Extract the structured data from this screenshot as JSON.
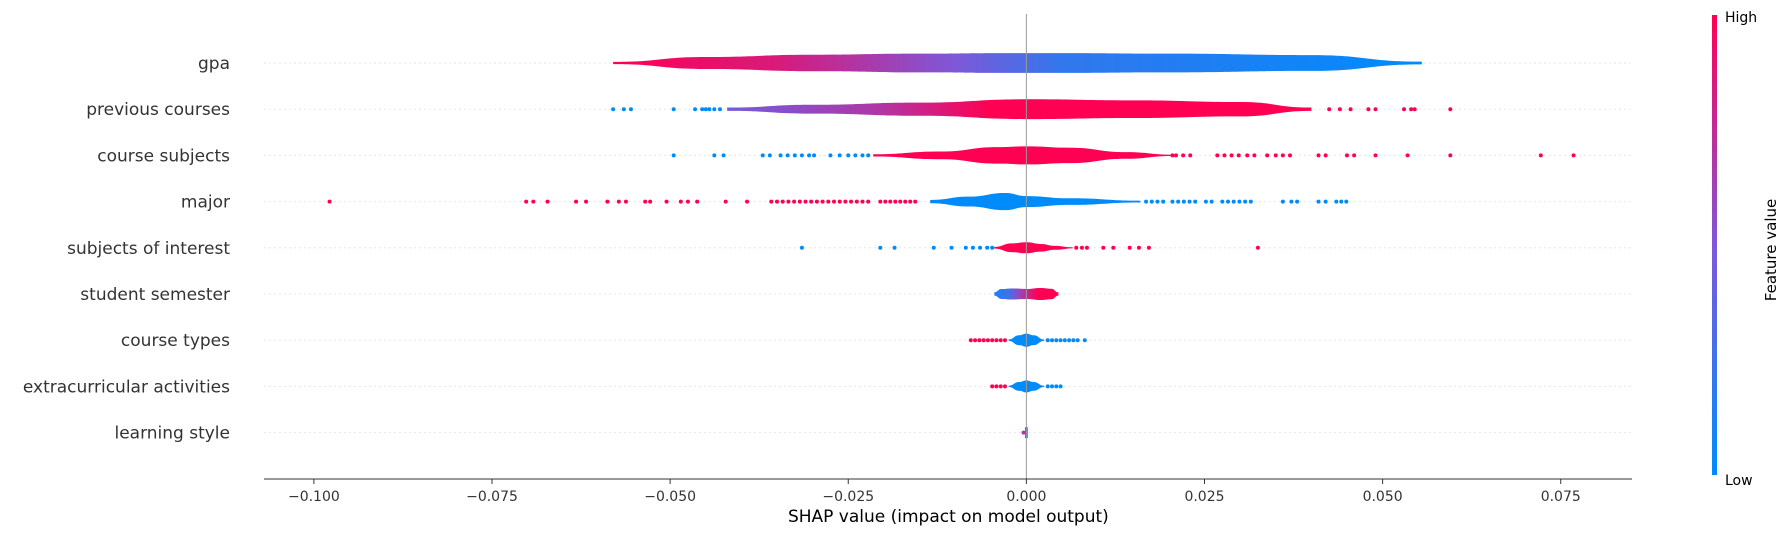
{
  "chart_data": {
    "type": "violin",
    "xlabel": "SHAP value (impact on model output)",
    "xlim": [
      -0.107,
      0.085
    ],
    "xticks": [
      -0.1,
      -0.075,
      -0.05,
      -0.025,
      0.0,
      0.025,
      0.05,
      0.075
    ],
    "xtick_labels": [
      "−0.100",
      "−0.075",
      "−0.050",
      "−0.025",
      "0.000",
      "0.025",
      "0.050",
      "0.075"
    ],
    "grid": "dotted horizontal per feature",
    "features": [
      {
        "name": "gpa",
        "min": -0.058,
        "max": 0.0555,
        "width_profile": [
          [
            -0.058,
            0.1
          ],
          [
            -0.045,
            0.55
          ],
          [
            -0.03,
            0.75
          ],
          [
            -0.015,
            0.85
          ],
          [
            -0.003,
            0.9
          ],
          [
            0.005,
            0.9
          ],
          [
            0.02,
            0.85
          ],
          [
            0.04,
            0.72
          ],
          [
            0.0555,
            0.12
          ]
        ],
        "color_stops": [
          [
            -0.058,
            1.0
          ],
          [
            -0.035,
            0.85
          ],
          [
            -0.01,
            0.5
          ],
          [
            0.005,
            0.2
          ],
          [
            0.0555,
            0.0
          ]
        ],
        "outliers": []
      },
      {
        "name": "previous courses",
        "min": -0.042,
        "max": 0.04,
        "width_profile": [
          [
            -0.042,
            0.15
          ],
          [
            -0.03,
            0.4
          ],
          [
            -0.015,
            0.6
          ],
          [
            0.0,
            0.9
          ],
          [
            0.015,
            0.8
          ],
          [
            0.03,
            0.65
          ],
          [
            0.04,
            0.15
          ]
        ],
        "color_stops": [
          [
            -0.042,
            0.45
          ],
          [
            -0.02,
            0.7
          ],
          [
            -0.005,
            1.0
          ],
          [
            0.04,
            1.0
          ]
        ],
        "outliers": [
          {
            "x": -0.058,
            "v": 0.0
          },
          {
            "x": -0.0565,
            "v": 0.0
          },
          {
            "x": -0.0555,
            "v": 0.0
          },
          {
            "x": -0.0495,
            "v": 0.0
          },
          {
            "x": -0.0465,
            "v": 0.0
          },
          {
            "x": -0.0455,
            "v": 0.0
          },
          {
            "x": -0.045,
            "v": 0.0
          },
          {
            "x": -0.0445,
            "v": 0.0
          },
          {
            "x": -0.0438,
            "v": 0.0
          },
          {
            "x": -0.043,
            "v": 0.0
          },
          {
            "x": 0.0425,
            "v": 1.0
          },
          {
            "x": 0.044,
            "v": 1.0
          },
          {
            "x": 0.0455,
            "v": 1.0
          },
          {
            "x": 0.048,
            "v": 1.0
          },
          {
            "x": 0.049,
            "v": 1.0
          },
          {
            "x": 0.053,
            "v": 1.0
          },
          {
            "x": 0.054,
            "v": 1.0
          },
          {
            "x": 0.0545,
            "v": 1.0
          },
          {
            "x": 0.0595,
            "v": 1.0
          }
        ]
      },
      {
        "name": "course subjects",
        "min": -0.0215,
        "max": 0.0205,
        "width_profile": [
          [
            -0.0215,
            0.1
          ],
          [
            -0.012,
            0.35
          ],
          [
            -0.004,
            0.75
          ],
          [
            0.0,
            0.82
          ],
          [
            0.006,
            0.7
          ],
          [
            0.014,
            0.3
          ],
          [
            0.0205,
            0.06
          ]
        ],
        "color_stops": [
          [
            -0.0215,
            1.0
          ],
          [
            0.0205,
            1.0
          ]
        ],
        "outliers": [
          {
            "x": -0.0495,
            "v": 0.0
          },
          {
            "x": -0.0438,
            "v": 0.0
          },
          {
            "x": -0.0425,
            "v": 0.0
          },
          {
            "x": -0.037,
            "v": 0.0
          },
          {
            "x": -0.036,
            "v": 0.0
          },
          {
            "x": -0.0345,
            "v": 0.0
          },
          {
            "x": -0.0335,
            "v": 0.0
          },
          {
            "x": -0.0325,
            "v": 0.0
          },
          {
            "x": -0.0315,
            "v": 0.0
          },
          {
            "x": -0.0305,
            "v": 0.0
          },
          {
            "x": -0.0298,
            "v": 0.0
          },
          {
            "x": -0.0275,
            "v": 0.0
          },
          {
            "x": -0.0262,
            "v": 0.0
          },
          {
            "x": -0.025,
            "v": 0.0
          },
          {
            "x": -0.024,
            "v": 0.0
          },
          {
            "x": -0.023,
            "v": 0.0
          },
          {
            "x": -0.0222,
            "v": 0.0
          },
          {
            "x": 0.0205,
            "v": 1.0
          },
          {
            "x": 0.021,
            "v": 1.0
          },
          {
            "x": 0.022,
            "v": 1.0
          },
          {
            "x": 0.023,
            "v": 1.0
          },
          {
            "x": 0.0268,
            "v": 1.0
          },
          {
            "x": 0.0278,
            "v": 1.0
          },
          {
            "x": 0.0288,
            "v": 1.0
          },
          {
            "x": 0.0298,
            "v": 1.0
          },
          {
            "x": 0.031,
            "v": 1.0
          },
          {
            "x": 0.032,
            "v": 1.0
          },
          {
            "x": 0.0338,
            "v": 1.0
          },
          {
            "x": 0.035,
            "v": 1.0
          },
          {
            "x": 0.036,
            "v": 1.0
          },
          {
            "x": 0.037,
            "v": 1.0
          },
          {
            "x": 0.041,
            "v": 1.0
          },
          {
            "x": 0.042,
            "v": 1.0
          },
          {
            "x": 0.045,
            "v": 1.0
          },
          {
            "x": 0.046,
            "v": 1.0
          },
          {
            "x": 0.049,
            "v": 1.0
          },
          {
            "x": 0.0535,
            "v": 1.0
          },
          {
            "x": 0.0595,
            "v": 1.0
          },
          {
            "x": 0.0722,
            "v": 1.0
          },
          {
            "x": 0.0768,
            "v": 1.0
          }
        ]
      },
      {
        "name": "major",
        "min": -0.0135,
        "max": 0.016,
        "width_profile": [
          [
            -0.0135,
            0.15
          ],
          [
            -0.008,
            0.45
          ],
          [
            -0.003,
            0.78
          ],
          [
            0.0,
            0.5
          ],
          [
            0.006,
            0.3
          ],
          [
            0.016,
            0.08
          ]
        ],
        "color_stops": [
          [
            -0.0135,
            0.0
          ],
          [
            0.016,
            0.0
          ]
        ],
        "outliers": [
          {
            "x": -0.0978,
            "v": 1.0
          },
          {
            "x": -0.0702,
            "v": 1.0
          },
          {
            "x": -0.0692,
            "v": 1.0
          },
          {
            "x": -0.0672,
            "v": 1.0
          },
          {
            "x": -0.0632,
            "v": 1.0
          },
          {
            "x": -0.0618,
            "v": 1.0
          },
          {
            "x": -0.0588,
            "v": 1.0
          },
          {
            "x": -0.0572,
            "v": 1.0
          },
          {
            "x": -0.0562,
            "v": 1.0
          },
          {
            "x": -0.0535,
            "v": 1.0
          },
          {
            "x": -0.0528,
            "v": 1.0
          },
          {
            "x": -0.0505,
            "v": 1.0
          },
          {
            "x": -0.0485,
            "v": 1.0
          },
          {
            "x": -0.0475,
            "v": 1.0
          },
          {
            "x": -0.0462,
            "v": 1.0
          },
          {
            "x": -0.0422,
            "v": 1.0
          },
          {
            "x": -0.0392,
            "v": 1.0
          },
          {
            "x": -0.0358,
            "v": 1.0
          },
          {
            "x": -0.035,
            "v": 1.0
          },
          {
            "x": -0.0342,
            "v": 1.0
          },
          {
            "x": -0.0334,
            "v": 1.0
          },
          {
            "x": -0.0326,
            "v": 1.0
          },
          {
            "x": -0.0318,
            "v": 1.0
          },
          {
            "x": -0.031,
            "v": 1.0
          },
          {
            "x": -0.0302,
            "v": 1.0
          },
          {
            "x": -0.0294,
            "v": 1.0
          },
          {
            "x": -0.0286,
            "v": 1.0
          },
          {
            "x": -0.0278,
            "v": 1.0
          },
          {
            "x": -0.027,
            "v": 1.0
          },
          {
            "x": -0.0262,
            "v": 1.0
          },
          {
            "x": -0.0254,
            "v": 1.0
          },
          {
            "x": -0.0246,
            "v": 1.0
          },
          {
            "x": -0.0238,
            "v": 1.0
          },
          {
            "x": -0.023,
            "v": 1.0
          },
          {
            "x": -0.0222,
            "v": 1.0
          },
          {
            "x": -0.0205,
            "v": 1.0
          },
          {
            "x": -0.0198,
            "v": 1.0
          },
          {
            "x": -0.0191,
            "v": 1.0
          },
          {
            "x": -0.0184,
            "v": 1.0
          },
          {
            "x": -0.0177,
            "v": 1.0
          },
          {
            "x": -0.017,
            "v": 1.0
          },
          {
            "x": -0.0163,
            "v": 1.0
          },
          {
            "x": -0.0156,
            "v": 1.0
          },
          {
            "x": 0.0168,
            "v": 0.0
          },
          {
            "x": 0.0176,
            "v": 0.0
          },
          {
            "x": 0.0184,
            "v": 0.0
          },
          {
            "x": 0.0192,
            "v": 0.0
          },
          {
            "x": 0.0205,
            "v": 0.0
          },
          {
            "x": 0.0213,
            "v": 0.0
          },
          {
            "x": 0.0221,
            "v": 0.0
          },
          {
            "x": 0.0229,
            "v": 0.0
          },
          {
            "x": 0.0237,
            "v": 0.0
          },
          {
            "x": 0.0252,
            "v": 0.0
          },
          {
            "x": 0.026,
            "v": 0.0
          },
          {
            "x": 0.0275,
            "v": 0.0
          },
          {
            "x": 0.0283,
            "v": 0.0
          },
          {
            "x": 0.0291,
            "v": 0.0
          },
          {
            "x": 0.0299,
            "v": 0.0
          },
          {
            "x": 0.0307,
            "v": 0.0
          },
          {
            "x": 0.0315,
            "v": 0.0
          },
          {
            "x": 0.036,
            "v": 0.0
          },
          {
            "x": 0.0372,
            "v": 0.0
          },
          {
            "x": 0.038,
            "v": 0.0
          },
          {
            "x": 0.041,
            "v": 0.0
          },
          {
            "x": 0.042,
            "v": 0.0
          },
          {
            "x": 0.0435,
            "v": 0.0
          },
          {
            "x": 0.0442,
            "v": 0.0
          },
          {
            "x": 0.0449,
            "v": 0.0
          }
        ]
      },
      {
        "name": "subjects of interest",
        "min": -0.0045,
        "max": 0.0065,
        "width_profile": [
          [
            -0.0045,
            0.08
          ],
          [
            -0.002,
            0.4
          ],
          [
            0.0,
            0.5
          ],
          [
            0.002,
            0.35
          ],
          [
            0.004,
            0.18
          ],
          [
            0.0065,
            0.05
          ]
        ],
        "color_stops": [
          [
            -0.0045,
            1.0
          ],
          [
            0.0065,
            1.0
          ]
        ],
        "outliers": [
          {
            "x": -0.0315,
            "v": 0.0
          },
          {
            "x": -0.0205,
            "v": 0.0
          },
          {
            "x": -0.0185,
            "v": 0.0
          },
          {
            "x": -0.013,
            "v": 0.0
          },
          {
            "x": -0.0105,
            "v": 0.0
          },
          {
            "x": -0.0085,
            "v": 0.0
          },
          {
            "x": -0.0075,
            "v": 0.0
          },
          {
            "x": -0.0065,
            "v": 0.0
          },
          {
            "x": -0.0055,
            "v": 0.0
          },
          {
            "x": -0.0048,
            "v": 0.0
          },
          {
            "x": 0.007,
            "v": 1.0
          },
          {
            "x": 0.0078,
            "v": 1.0
          },
          {
            "x": 0.0085,
            "v": 1.0
          },
          {
            "x": 0.0108,
            "v": 1.0
          },
          {
            "x": 0.0122,
            "v": 1.0
          },
          {
            "x": 0.0145,
            "v": 1.0
          },
          {
            "x": 0.0158,
            "v": 1.0
          },
          {
            "x": 0.0172,
            "v": 1.0
          },
          {
            "x": 0.0325,
            "v": 1.0
          }
        ]
      },
      {
        "name": "student semester",
        "min": -0.0045,
        "max": 0.0045,
        "width_profile": [
          [
            -0.0045,
            0.15
          ],
          [
            -0.0035,
            0.45
          ],
          [
            -0.002,
            0.5
          ],
          [
            0.0,
            0.46
          ],
          [
            0.002,
            0.55
          ],
          [
            0.0035,
            0.48
          ],
          [
            0.0045,
            0.15
          ]
        ],
        "color_stops": [
          [
            -0.0045,
            0.1
          ],
          [
            -0.0025,
            0.25
          ],
          [
            -0.001,
            0.6
          ],
          [
            0.0015,
            1.0
          ],
          [
            0.0045,
            1.0
          ]
        ],
        "outliers": []
      },
      {
        "name": "course types",
        "min": -0.0025,
        "max": 0.0025,
        "width_profile": [
          [
            -0.0025,
            0.06
          ],
          [
            -0.001,
            0.45
          ],
          [
            0.0,
            0.6
          ],
          [
            0.001,
            0.45
          ],
          [
            0.0025,
            0.06
          ]
        ],
        "color_stops": [
          [
            -0.0025,
            0.0
          ],
          [
            0.0025,
            0.0
          ]
        ],
        "outliers": [
          {
            "x": -0.0078,
            "v": 1.0
          },
          {
            "x": -0.0072,
            "v": 1.0
          },
          {
            "x": -0.0066,
            "v": 1.0
          },
          {
            "x": -0.006,
            "v": 1.0
          },
          {
            "x": -0.0054,
            "v": 1.0
          },
          {
            "x": -0.0048,
            "v": 1.0
          },
          {
            "x": -0.0042,
            "v": 1.0
          },
          {
            "x": -0.0036,
            "v": 1.0
          },
          {
            "x": -0.003,
            "v": 1.0
          },
          {
            "x": 0.003,
            "v": 0.0
          },
          {
            "x": 0.0036,
            "v": 0.0
          },
          {
            "x": 0.0042,
            "v": 0.0
          },
          {
            "x": 0.0048,
            "v": 0.0
          },
          {
            "x": 0.0054,
            "v": 0.0
          },
          {
            "x": 0.006,
            "v": 0.0
          },
          {
            "x": 0.0066,
            "v": 0.0
          },
          {
            "x": 0.0072,
            "v": 0.0
          },
          {
            "x": 0.0082,
            "v": 0.0
          }
        ]
      },
      {
        "name": "extracurricular activities",
        "min": -0.0025,
        "max": 0.0025,
        "width_profile": [
          [
            -0.0025,
            0.06
          ],
          [
            -0.001,
            0.4
          ],
          [
            0.0,
            0.55
          ],
          [
            0.001,
            0.4
          ],
          [
            0.0025,
            0.06
          ]
        ],
        "color_stops": [
          [
            -0.0025,
            0.0
          ],
          [
            0.0025,
            0.0
          ]
        ],
        "outliers": [
          {
            "x": -0.0048,
            "v": 1.0
          },
          {
            "x": -0.0042,
            "v": 1.0
          },
          {
            "x": -0.0036,
            "v": 1.0
          },
          {
            "x": -0.003,
            "v": 1.0
          },
          {
            "x": 0.003,
            "v": 0.0
          },
          {
            "x": 0.0036,
            "v": 0.0
          },
          {
            "x": 0.0042,
            "v": 0.0
          },
          {
            "x": 0.0048,
            "v": 0.0
          }
        ]
      },
      {
        "name": "learning style",
        "min": -0.0002,
        "max": 0.0002,
        "width_profile": [
          [
            -0.0002,
            0.5
          ],
          [
            0.0,
            0.5
          ],
          [
            0.0002,
            0.5
          ]
        ],
        "color_stops": [
          [
            -0.0002,
            0.0
          ],
          [
            0.0002,
            0.0
          ]
        ],
        "outliers": [
          {
            "x": -0.0004,
            "v": 0.7
          }
        ]
      }
    ],
    "colorbar": {
      "title": "Feature value",
      "high_label": "High",
      "low_label": "Low",
      "low_color": "#008bfb",
      "high_color": "#ff0052"
    }
  }
}
